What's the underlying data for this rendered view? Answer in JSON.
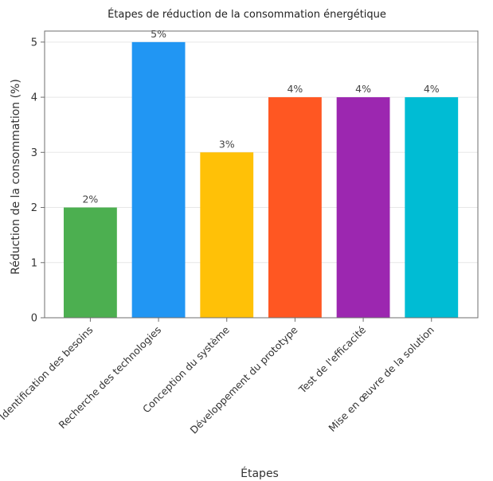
{
  "chart_data": {
    "type": "bar",
    "title": "Étapes de réduction de la consommation énergétique",
    "xlabel": "Étapes",
    "ylabel": "Réduction de la consommation (%)",
    "categories": [
      "Identification des besoins",
      "Recherche des technologies",
      "Conception du système",
      "Développement du prototype",
      "Test de l'efficacité",
      "Mise en œuvre de la solution"
    ],
    "values": [
      2,
      5,
      3,
      4,
      4,
      4
    ],
    "data_labels": [
      "2%",
      "5%",
      "3%",
      "4%",
      "4%",
      "4%"
    ],
    "colors": [
      "#4caf50",
      "#2196f3",
      "#ffc107",
      "#ff5722",
      "#9c27b0",
      "#00bcd4"
    ],
    "yticks": [
      0,
      1,
      2,
      3,
      4,
      5
    ],
    "ylim": [
      0,
      5.2
    ],
    "grid": true,
    "legend": "none"
  }
}
